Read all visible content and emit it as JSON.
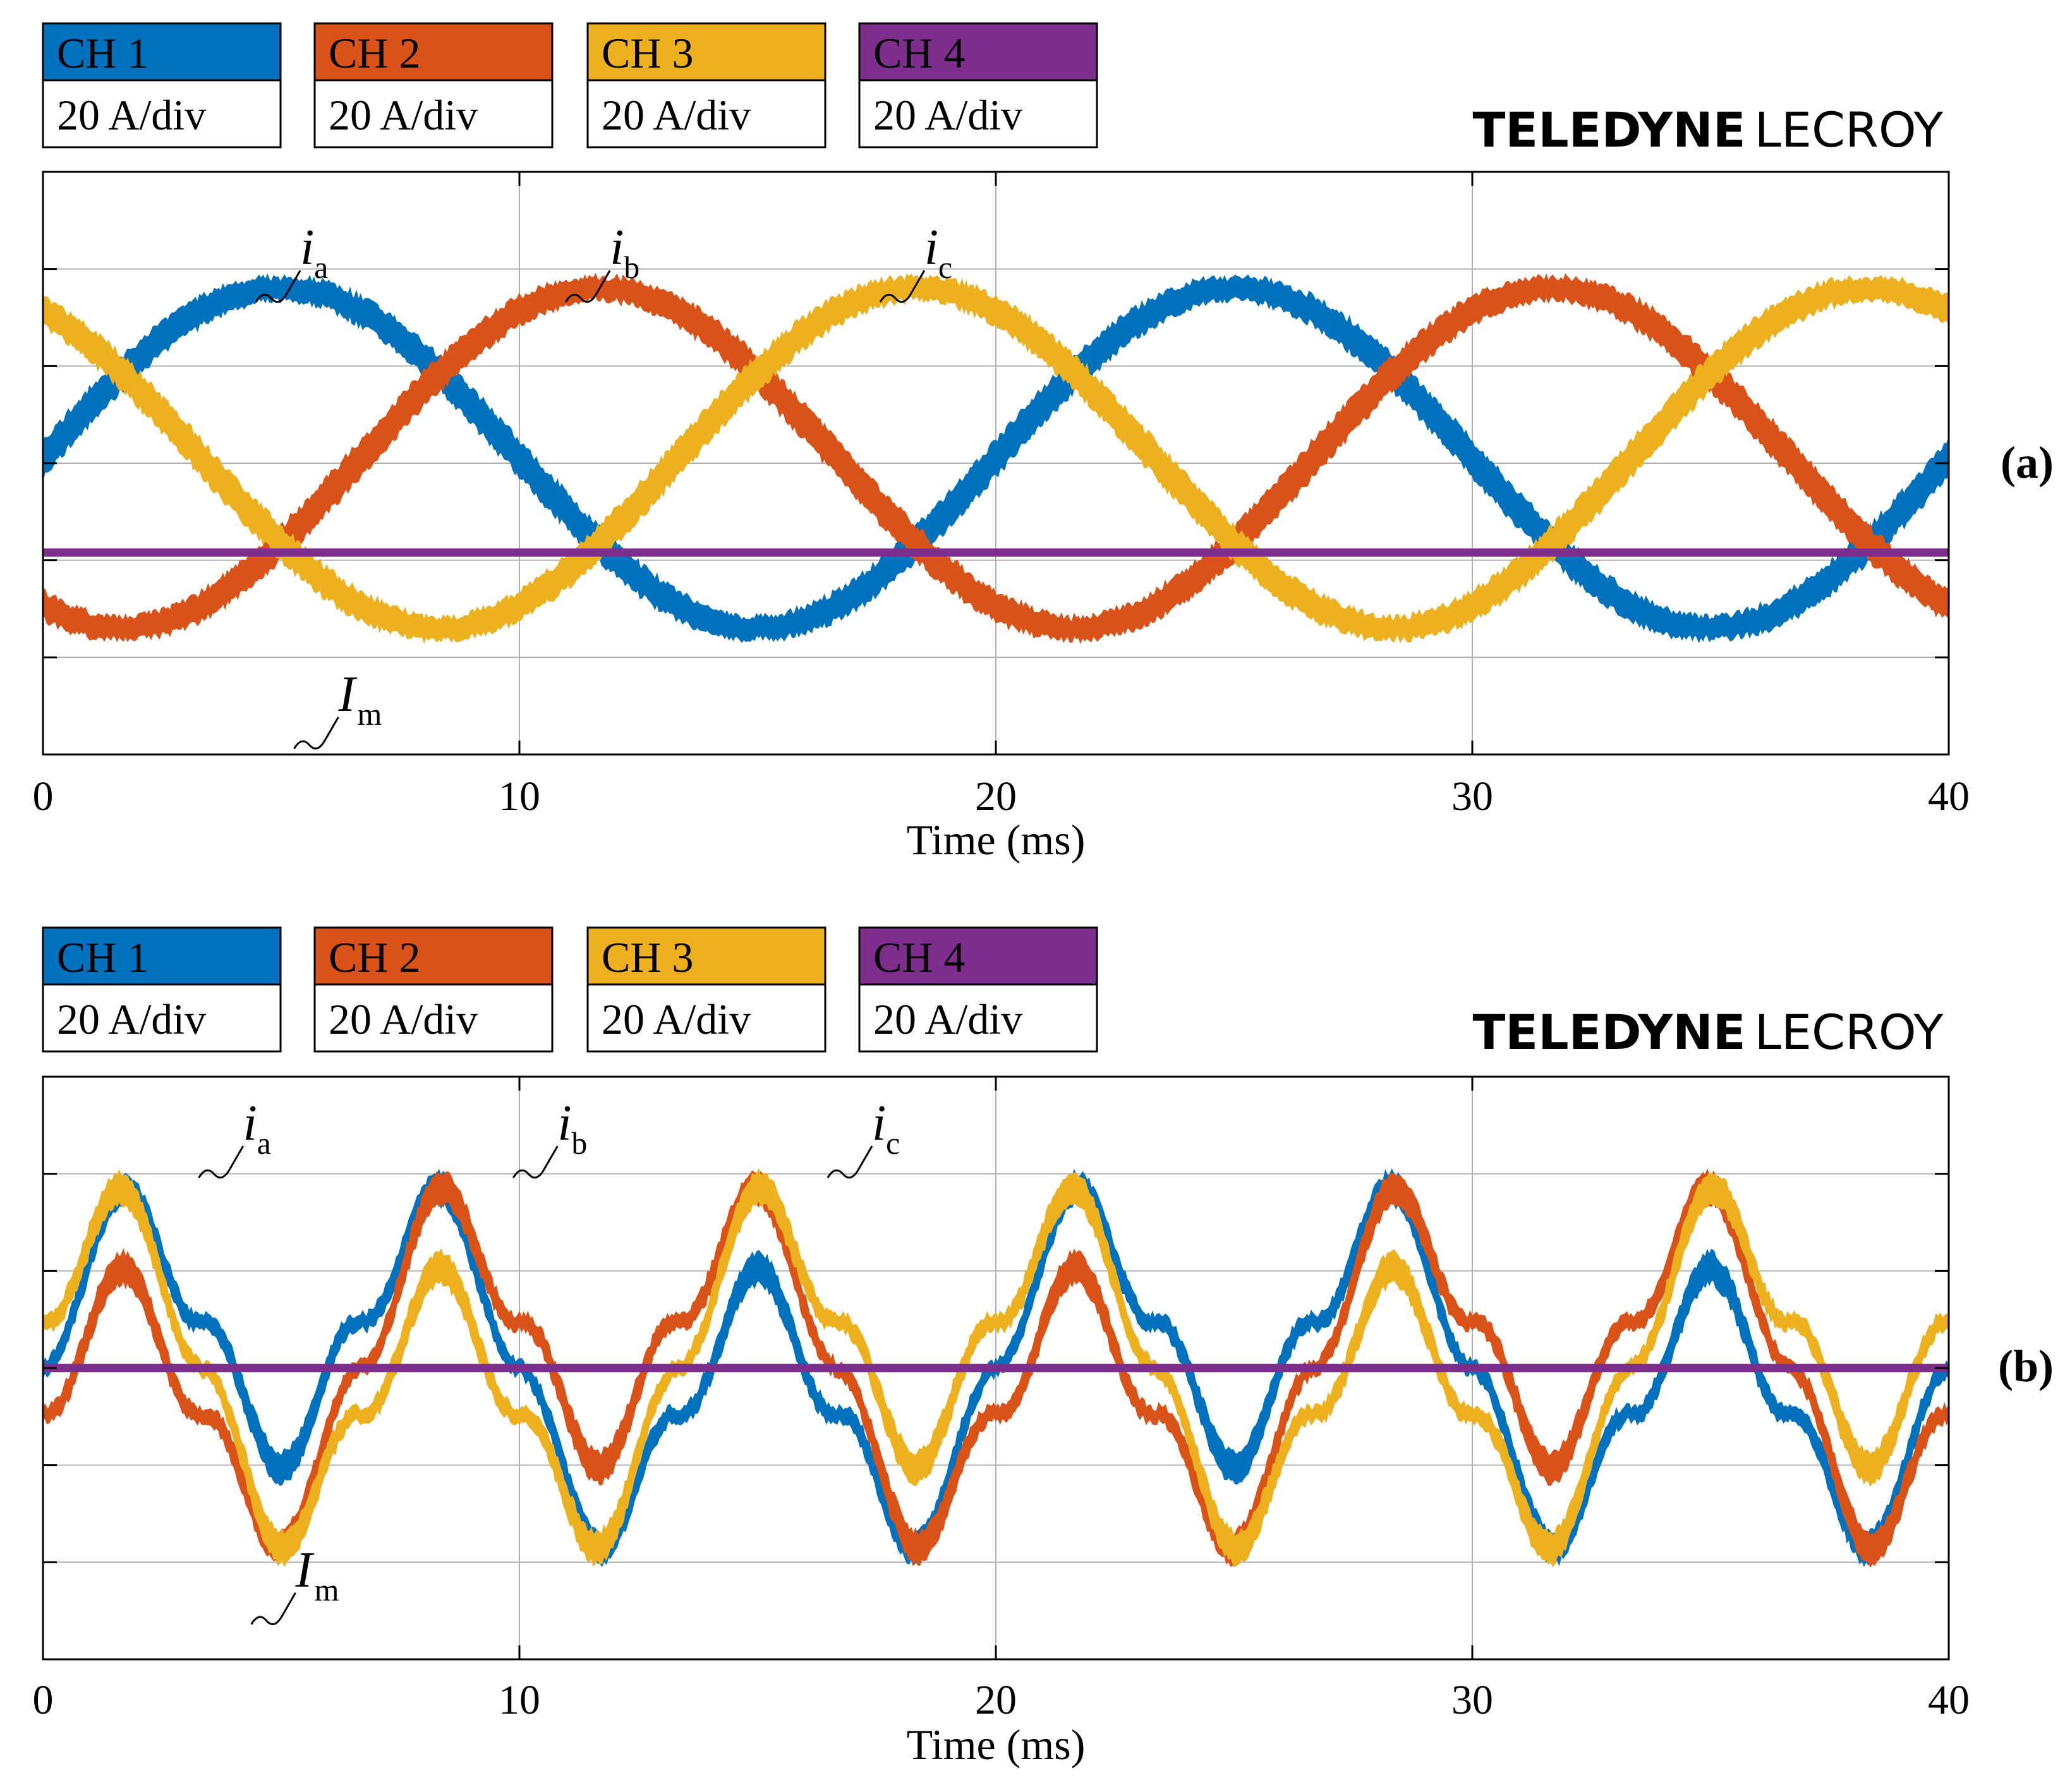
{
  "colors": {
    "ch1": "#0072BD",
    "ch2": "#D95319",
    "ch3": "#EDB120",
    "ch4": "#7E2F8E",
    "grid": "#b0b0b0",
    "frame": "#000000"
  },
  "chart_data": [
    {
      "type": "line",
      "panel_label": "(a)",
      "brand_bold": "TELEDYNE",
      "brand_light": "LECROY",
      "channels": [
        {
          "name": "CH 1",
          "scale": "20 A/div"
        },
        {
          "name": "CH 2",
          "scale": "20 A/div"
        },
        {
          "name": "CH 3",
          "scale": "20 A/div"
        },
        {
          "name": "CH 4",
          "scale": "20 A/div"
        }
      ],
      "xlabel": "Time (ms)",
      "xlim": [
        0,
        40
      ],
      "xticks": [
        "0",
        "10",
        "20",
        "30",
        "40"
      ],
      "ylim_div": [
        -2,
        4
      ],
      "vertical_divisions": 6,
      "grid": true,
      "annotations": [
        {
          "symbol": "i",
          "sub": "a",
          "x_ms": 5.4,
          "y_div": 3.05
        },
        {
          "symbol": "i",
          "sub": "b",
          "x_ms": 11.9,
          "y_div": 3.05
        },
        {
          "symbol": "i",
          "sub": "c",
          "x_ms": 18.5,
          "y_div": 3.05
        },
        {
          "symbol": "I",
          "sub": "m",
          "x_ms": 6.2,
          "y_div": -1.55
        }
      ],
      "series": [
        {
          "name": "i_a",
          "channel": "CH 1",
          "kind": "sine",
          "amplitude_div": 1.75,
          "offset_div": 1.05,
          "frequency_hz": 50,
          "phase_deg": 0,
          "ripple_div": 0.28
        },
        {
          "name": "i_b",
          "channel": "CH 2",
          "kind": "sine",
          "amplitude_div": 1.75,
          "offset_div": 1.05,
          "frequency_hz": 50,
          "phase_deg": -120,
          "ripple_div": 0.28
        },
        {
          "name": "i_c",
          "channel": "CH 3",
          "kind": "sine",
          "amplitude_div": 1.75,
          "offset_div": 1.05,
          "frequency_hz": 50,
          "phase_deg": 120,
          "ripple_div": 0.28
        },
        {
          "name": "I_m",
          "channel": "CH 4",
          "kind": "flat",
          "offset_div": 0.08
        }
      ]
    },
    {
      "type": "line",
      "panel_label": "(b)",
      "brand_bold": "TELEDYNE",
      "brand_light": "LECROY",
      "channels": [
        {
          "name": "CH 1",
          "scale": "20 A/div"
        },
        {
          "name": "CH 2",
          "scale": "20 A/div"
        },
        {
          "name": "CH 3",
          "scale": "20 A/div"
        },
        {
          "name": "CH 4",
          "scale": "20 A/div"
        }
      ],
      "xlabel": "Time (ms)",
      "xlim": [
        0,
        40
      ],
      "xticks": [
        "0",
        "10",
        "20",
        "30",
        "40"
      ],
      "ylim_div": [
        -3,
        3
      ],
      "vertical_divisions": 6,
      "grid": true,
      "annotations": [
        {
          "symbol": "i",
          "sub": "a",
          "x_ms": 4.2,
          "y_div": 2.35
        },
        {
          "symbol": "i",
          "sub": "b",
          "x_ms": 10.8,
          "y_div": 2.35
        },
        {
          "symbol": "i",
          "sub": "c",
          "x_ms": 17.4,
          "y_div": 2.35
        },
        {
          "symbol": "I",
          "sub": "m",
          "x_ms": 5.3,
          "y_div": -2.25
        }
      ],
      "series": [
        {
          "name": "i_a",
          "channel": "CH 1",
          "kind": "pulsed",
          "offset_div": 1.0,
          "pulse_amplitude_div": 1.75,
          "frequency_hz": 50,
          "phase_deg": 0,
          "ripple_div": 0.22
        },
        {
          "name": "i_b",
          "channel": "CH 2",
          "kind": "pulsed",
          "offset_div": 1.0,
          "pulse_amplitude_div": 1.75,
          "frequency_hz": 50,
          "phase_deg": -120,
          "ripple_div": 0.22
        },
        {
          "name": "i_c",
          "channel": "CH 3",
          "kind": "pulsed",
          "offset_div": 1.0,
          "pulse_amplitude_div": 1.75,
          "frequency_hz": 50,
          "phase_deg": 120,
          "ripple_div": 0.22
        },
        {
          "name": "I_m",
          "channel": "CH 4",
          "kind": "flat",
          "offset_div": 0.0
        }
      ]
    }
  ]
}
